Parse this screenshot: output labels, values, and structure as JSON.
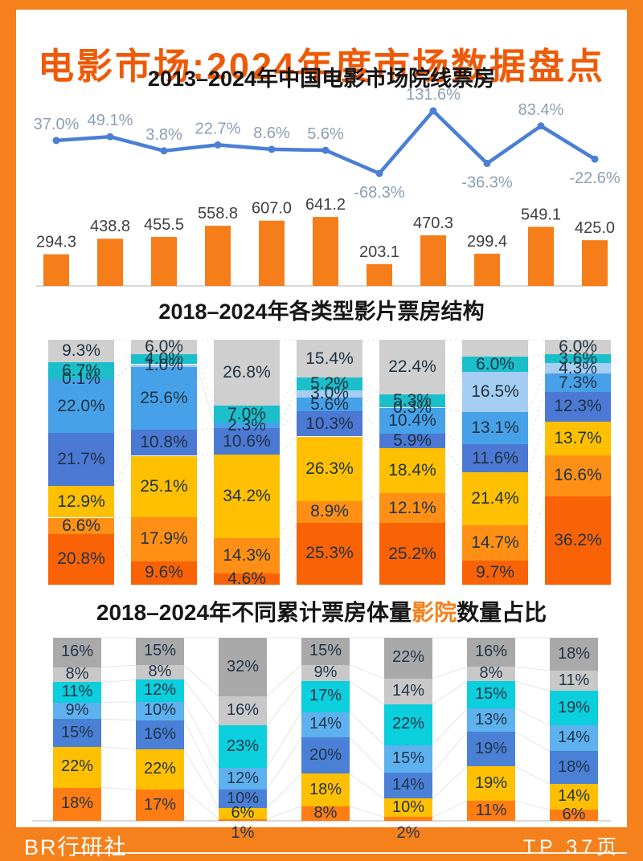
{
  "page": {
    "title": "电影市场:2024年度市场数据盘点",
    "title_color": "#ee5a07",
    "frame_color": "#f5811d",
    "footer_left": "BR行研社",
    "footer_right": "TP 37页"
  },
  "chart_data": [
    {
      "type": "bar+line",
      "title": "2013–2024年中国电影市场院线票房",
      "bar_color": "#f57e1b",
      "bar_label_color": "#3f3f3f",
      "line_color": "#4a7fd4",
      "line_label_color": "#8c9fb4",
      "axis_color": "#d9d9d9",
      "bar_values": [
        294.3,
        438.8,
        455.5,
        558.8,
        607.0,
        641.2,
        203.1,
        470.3,
        299.4,
        549.1,
        425.0
      ],
      "bar_labels": [
        "294.3",
        "438.8",
        "455.5",
        "558.8",
        "607.0",
        "641.2",
        "203.1",
        "470.3",
        "299.4",
        "549.1",
        "425.0"
      ],
      "line_values": [
        37.0,
        49.1,
        3.8,
        22.7,
        8.6,
        5.6,
        -68.3,
        131.6,
        -36.3,
        83.4,
        -22.6
      ],
      "line_labels": [
        "37.0%",
        "49.1%",
        "3.8%",
        "22.7%",
        "8.6%",
        "5.6%",
        "-68.3%",
        "131.6%",
        "-36.3%",
        "83.4%",
        "-22.6%"
      ],
      "line_labels_below": [
        false,
        false,
        false,
        false,
        false,
        false,
        true,
        false,
        true,
        false,
        true
      ]
    },
    {
      "type": "stacked-bar",
      "title": "2018–2024年各类型影片票房结构",
      "label_color": "#1f3242",
      "palette": [
        "#cfcfcf",
        "#1bbfca",
        "#a6cdf2",
        "#47a1e8",
        "#4b79d4",
        "#ffc002",
        "#ff9015",
        "#f96306"
      ],
      "columns": [
        {
          "segments": [
            {
              "label": "9.3%",
              "value": 9.3,
              "color": 0
            },
            {
              "label": "6.7%",
              "value": 6.7,
              "color": 1
            },
            {
              "label": "0.1%",
              "value": 0.1,
              "color": 2
            },
            {
              "label": "22.0%",
              "value": 22.0,
              "color": 3
            },
            {
              "label": "21.7%",
              "value": 21.7,
              "color": 4
            },
            {
              "label": "12.9%",
              "value": 12.9,
              "color": 5
            },
            {
              "label": "6.6%",
              "value": 6.6,
              "color": 6
            },
            {
              "label": "20.8%",
              "value": 20.8,
              "color": 7
            }
          ]
        },
        {
          "segments": [
            {
              "label": "6.0%",
              "value": 6.0,
              "color": 0
            },
            {
              "label": "4.0%",
              "value": 4.0,
              "color": 1
            },
            {
              "label": "1.0%",
              "value": 1.0,
              "color": 2
            },
            {
              "label": "25.6%",
              "value": 25.6,
              "color": 3
            },
            {
              "label": "10.8%",
              "value": 10.8,
              "color": 4
            },
            {
              "label": "25.1%",
              "value": 25.1,
              "color": 5
            },
            {
              "label": "17.9%",
              "value": 17.9,
              "color": 6
            },
            {
              "label": "9.6%",
              "value": 9.6,
              "color": 7
            }
          ]
        },
        {
          "segments": [
            {
              "label": "26.8%",
              "value": 26.8,
              "color": 0
            },
            {
              "label": "7.0%",
              "value": 7.0,
              "color": 1
            },
            {
              "label": "2.3%",
              "value": 2.3,
              "color": 3
            },
            {
              "label": "10.6%",
              "value": 10.6,
              "color": 4
            },
            {
              "label": "34.2%",
              "value": 34.2,
              "color": 5
            },
            {
              "label": "14.3%",
              "value": 14.3,
              "color": 6
            },
            {
              "label": "4.6%",
              "value": 4.6,
              "color": 7
            }
          ]
        },
        {
          "segments": [
            {
              "label": "15.4%",
              "value": 15.4,
              "color": 0
            },
            {
              "label": "5.2%",
              "value": 5.2,
              "color": 1
            },
            {
              "label": "3.0%",
              "value": 3.0,
              "color": 2
            },
            {
              "label": "5.6%",
              "value": 5.6,
              "color": 3
            },
            {
              "label": "10.3%",
              "value": 10.3,
              "color": 4
            },
            {
              "label": "26.3%",
              "value": 26.3,
              "color": 5
            },
            {
              "label": "8.9%",
              "value": 8.9,
              "color": 6
            },
            {
              "label": "25.3%",
              "value": 25.3,
              "color": 7
            }
          ]
        },
        {
          "segments": [
            {
              "label": "22.4%",
              "value": 22.4,
              "color": 0
            },
            {
              "label": "5.3%",
              "value": 5.3,
              "color": 1
            },
            {
              "label": "0.3%",
              "value": 0.3,
              "color": 2
            },
            {
              "label": "10.4%",
              "value": 10.4,
              "color": 3
            },
            {
              "label": "5.9%",
              "value": 5.9,
              "color": 4
            },
            {
              "label": "18.4%",
              "value": 18.4,
              "color": 5
            },
            {
              "label": "12.1%",
              "value": 12.1,
              "color": 6
            },
            {
              "label": "25.2%",
              "value": 25.2,
              "color": 7
            }
          ]
        },
        {
          "segments": [
            {
              "label": "",
              "value": 7.0,
              "color": 0
            },
            {
              "label": "6.0%",
              "value": 6.0,
              "color": 1
            },
            {
              "label": "16.5%",
              "value": 16.5,
              "color": 2
            },
            {
              "label": "13.1%",
              "value": 13.1,
              "color": 3
            },
            {
              "label": "11.6%",
              "value": 11.6,
              "color": 4
            },
            {
              "label": "21.4%",
              "value": 21.4,
              "color": 5
            },
            {
              "label": "14.7%",
              "value": 14.7,
              "color": 6
            },
            {
              "label": "9.7%",
              "value": 9.7,
              "color": 7
            }
          ]
        },
        {
          "segments": [
            {
              "label": "6.0%",
              "value": 6.0,
              "color": 0
            },
            {
              "label": "3.6%",
              "value": 3.6,
              "color": 1
            },
            {
              "label": "4.3%",
              "value": 4.3,
              "color": 2
            },
            {
              "label": "7.3%",
              "value": 7.3,
              "color": 3
            },
            {
              "label": "12.3%",
              "value": 12.3,
              "color": 4
            },
            {
              "label": "13.7%",
              "value": 13.7,
              "color": 5
            },
            {
              "label": "16.6%",
              "value": 16.6,
              "color": 6
            },
            {
              "label": "36.2%",
              "value": 36.2,
              "color": 7
            }
          ]
        }
      ]
    },
    {
      "type": "stacked-bar",
      "title_parts": {
        "pre": "2018–2024年不同累计票房体量",
        "highlight": "影院",
        "post": "数量占比"
      },
      "highlight_color": "#f5811d",
      "label_color": "#22344a",
      "axis_color": "#d9d9d9",
      "palette": [
        "#a9a9a9",
        "#c8c8c8",
        "#0bcfdc",
        "#5db1ee",
        "#4a80d6",
        "#ffc002",
        "#ff7d12"
      ],
      "columns": [
        {
          "segments": [
            {
              "label": "16%",
              "value": 16,
              "color": 0
            },
            {
              "label": "8%",
              "value": 8,
              "color": 1
            },
            {
              "label": "11%",
              "value": 11,
              "color": 2
            },
            {
              "label": "9%",
              "value": 9,
              "color": 3
            },
            {
              "label": "15%",
              "value": 15,
              "color": 4
            },
            {
              "label": "22%",
              "value": 22,
              "color": 5
            },
            {
              "label": "18%",
              "value": 18,
              "color": 6
            }
          ]
        },
        {
          "segments": [
            {
              "label": "15%",
              "value": 15,
              "color": 0
            },
            {
              "label": "8%",
              "value": 8,
              "color": 1
            },
            {
              "label": "12%",
              "value": 12,
              "color": 2
            },
            {
              "label": "10%",
              "value": 10,
              "color": 3
            },
            {
              "label": "16%",
              "value": 16,
              "color": 4
            },
            {
              "label": "22%",
              "value": 22,
              "color": 5
            },
            {
              "label": "17%",
              "value": 17,
              "color": 6
            }
          ]
        },
        {
          "segments": [
            {
              "label": "32%",
              "value": 32,
              "color": 0
            },
            {
              "label": "16%",
              "value": 16,
              "color": 1
            },
            {
              "label": "23%",
              "value": 23,
              "color": 2
            },
            {
              "label": "12%",
              "value": 12,
              "color": 3
            },
            {
              "label": "10%",
              "value": 10,
              "color": 4
            },
            {
              "label": "6%",
              "value": 6,
              "color": 5
            },
            {
              "label": "1%",
              "value": 1,
              "color": 6
            }
          ]
        },
        {
          "segments": [
            {
              "label": "15%",
              "value": 15,
              "color": 0
            },
            {
              "label": "9%",
              "value": 9,
              "color": 1
            },
            {
              "label": "17%",
              "value": 17,
              "color": 2
            },
            {
              "label": "14%",
              "value": 14,
              "color": 3
            },
            {
              "label": "20%",
              "value": 20,
              "color": 4
            },
            {
              "label": "18%",
              "value": 18,
              "color": 5
            },
            {
              "label": "8%",
              "value": 8,
              "color": 6
            }
          ]
        },
        {
          "segments": [
            {
              "label": "22%",
              "value": 22,
              "color": 0
            },
            {
              "label": "14%",
              "value": 14,
              "color": 1
            },
            {
              "label": "22%",
              "value": 22,
              "color": 2
            },
            {
              "label": "15%",
              "value": 15,
              "color": 3
            },
            {
              "label": "14%",
              "value": 14,
              "color": 4
            },
            {
              "label": "10%",
              "value": 10,
              "color": 5
            },
            {
              "label": "2%",
              "value": 2,
              "color": 6
            }
          ]
        },
        {
          "segments": [
            {
              "label": "16%",
              "value": 16,
              "color": 0
            },
            {
              "label": "8%",
              "value": 8,
              "color": 1
            },
            {
              "label": "15%",
              "value": 15,
              "color": 2
            },
            {
              "label": "13%",
              "value": 13,
              "color": 3
            },
            {
              "label": "19%",
              "value": 19,
              "color": 4
            },
            {
              "label": "19%",
              "value": 19,
              "color": 5
            },
            {
              "label": "11%",
              "value": 11,
              "color": 6
            }
          ]
        },
        {
          "segments": [
            {
              "label": "18%",
              "value": 18,
              "color": 0
            },
            {
              "label": "11%",
              "value": 11,
              "color": 1
            },
            {
              "label": "19%",
              "value": 19,
              "color": 2
            },
            {
              "label": "14%",
              "value": 14,
              "color": 3
            },
            {
              "label": "18%",
              "value": 18,
              "color": 4
            },
            {
              "label": "14%",
              "value": 14,
              "color": 5
            },
            {
              "label": "6%",
              "value": 6,
              "color": 6
            }
          ]
        }
      ]
    }
  ]
}
